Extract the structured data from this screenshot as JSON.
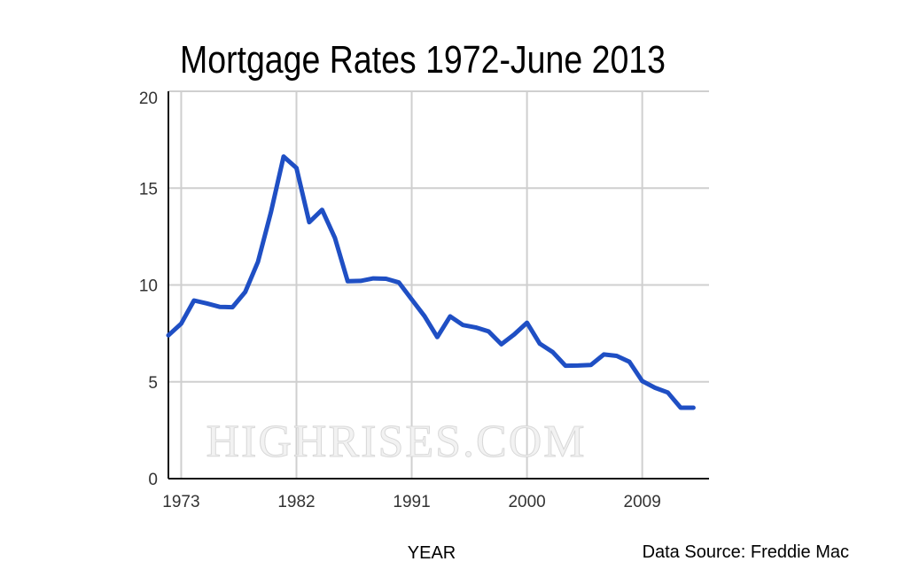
{
  "chart_data": {
    "type": "line",
    "title": "Mortgage Rates 1972-June 2013",
    "xlabel": "YEAR",
    "ylabel": "",
    "source_note": "Data Source: Freddie Mac",
    "watermark": "HIGHRISES.COM",
    "xlim": [
      1972,
      2014
    ],
    "ylim": [
      0,
      20
    ],
    "x_ticks": [
      1973,
      1982,
      1991,
      2000,
      2009
    ],
    "y_ticks": [
      0,
      5,
      10,
      15,
      20
    ],
    "grid": true,
    "line_color": "#1f4fc4",
    "series": [
      {
        "x": [
          1972,
          1973,
          1974,
          1975,
          1976,
          1977,
          1978,
          1979,
          1980,
          1981,
          1982,
          1983,
          1984,
          1985,
          1986,
          1987,
          1988,
          1989,
          1990,
          1991,
          1992,
          1993,
          1994,
          1995,
          1996,
          1997,
          1998,
          1999,
          2000,
          2001,
          2002,
          2003,
          2004,
          2005,
          2006,
          2007,
          2008,
          2009,
          2010,
          2011,
          2012,
          2013
        ],
        "y": [
          7.4,
          8.0,
          9.2,
          9.05,
          8.87,
          8.85,
          9.64,
          11.2,
          13.74,
          16.63,
          16.04,
          13.24,
          13.88,
          12.43,
          10.19,
          10.21,
          10.34,
          10.32,
          10.13,
          9.25,
          8.39,
          7.31,
          8.38,
          7.93,
          7.81,
          7.6,
          6.94,
          7.44,
          8.05,
          6.97,
          6.54,
          5.83,
          5.84,
          5.87,
          6.41,
          6.34,
          6.03,
          5.04,
          4.69,
          4.45,
          3.66,
          3.66
        ]
      }
    ]
  }
}
